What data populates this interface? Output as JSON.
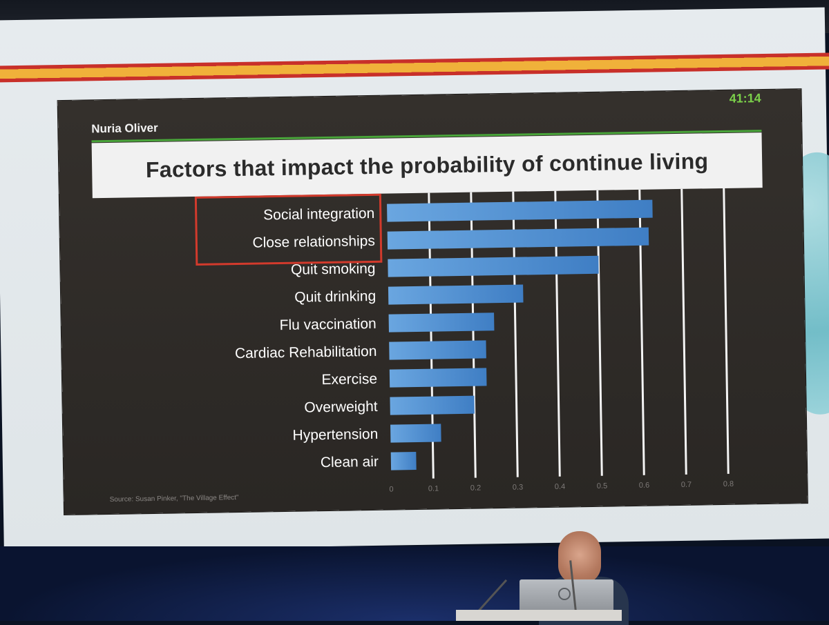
{
  "slide": {
    "author": "Nuria Oliver",
    "timer": "41:14",
    "title": "Factors that impact the probability of continue living",
    "source": "Source: Susan Pinker, \"The Village Effect\""
  },
  "chart_data": {
    "type": "bar",
    "orientation": "horizontal",
    "title": "Factors that impact the probability of continue living",
    "xlabel": "",
    "ylabel": "",
    "categories": [
      "Social integration",
      "Close relationships",
      "Quit smoking",
      "Quit drinking",
      "Flu vaccination",
      "Cardiac Rehabilitation",
      "Exercise",
      "Overweight",
      "Hypertension",
      "Clean air"
    ],
    "values": [
      0.63,
      0.62,
      0.5,
      0.32,
      0.25,
      0.23,
      0.23,
      0.2,
      0.12,
      0.06
    ],
    "xlim": [
      0,
      0.8
    ],
    "xticks": [
      "0",
      "0.1",
      "0.2",
      "0.3",
      "0.4",
      "0.5",
      "0.6",
      "0.7",
      "0.8"
    ],
    "grid": true,
    "highlighted_categories": [
      "Social integration",
      "Close relationships"
    ],
    "colors": {
      "bar": "#4f8fd0",
      "highlight_box": "#d23a2c",
      "gridline": "#f4f4f4",
      "label": "#ffffff"
    }
  }
}
